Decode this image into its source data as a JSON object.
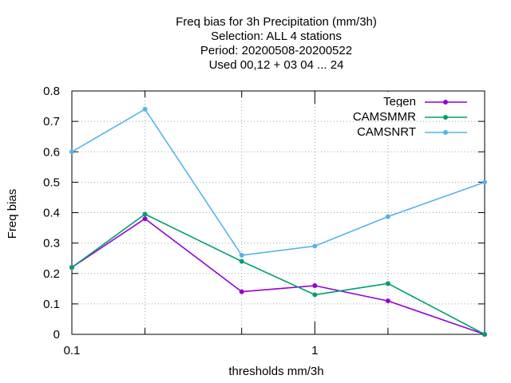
{
  "chart_data": {
    "type": "line",
    "title_lines": [
      "Freq bias  for 3h Precipitation (mm/3h)",
      "Selection: ALL      4 stations",
      "Period: 20200508-20200522",
      "Used  00,12  + 03 04 ... 24"
    ],
    "xlabel": "thresholds mm/3h",
    "ylabel": "Freq bias",
    "xscale": "log",
    "xlim": [
      0.1,
      5
    ],
    "ylim": [
      0,
      0.8
    ],
    "xtick_labels": [
      {
        "value": 0.1,
        "label": "0.1"
      },
      {
        "value": 1,
        "label": "1"
      }
    ],
    "x_minor_ticks": [
      0.2,
      0.5,
      2
    ],
    "yticks": [
      0,
      0.1,
      0.2,
      0.3,
      0.4,
      0.5,
      0.6,
      0.7,
      0.8
    ],
    "ytick_labels": [
      "0",
      "0.1",
      "0.2",
      "0.3",
      "0.4",
      "0.5",
      "0.6",
      "0.7",
      "0.8"
    ],
    "grid": true,
    "legend_position": "top-right",
    "x": [
      0.1,
      0.2,
      0.5,
      1,
      2,
      5
    ],
    "series": [
      {
        "name": "Tegen",
        "color": "#9400d3",
        "values": [
          0.22,
          0.38,
          0.14,
          0.16,
          0.11,
          0.0
        ]
      },
      {
        "name": "CAMSMMR",
        "color": "#009e73",
        "values": [
          0.22,
          0.395,
          0.24,
          0.13,
          0.167,
          0.0
        ]
      },
      {
        "name": "CAMSNRT",
        "color": "#56b4e9",
        "values": [
          0.6,
          0.74,
          0.26,
          0.29,
          0.387,
          0.5
        ]
      }
    ]
  }
}
